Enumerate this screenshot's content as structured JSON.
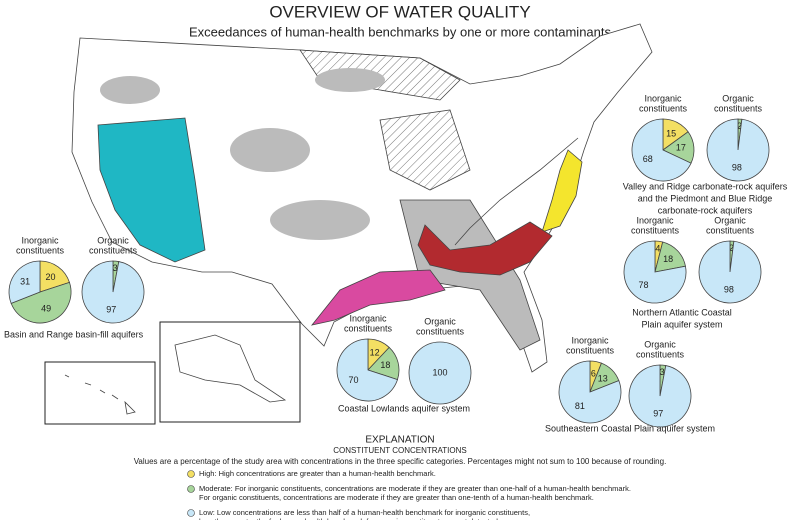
{
  "title": "OVERVIEW OF WATER QUALITY",
  "subtitle": "Exceedances of human-health benchmarks by one or more contaminants",
  "colors": {
    "high": "#f3df63",
    "moderate": "#a7d59b",
    "low": "#c8e7f8"
  },
  "regions": [
    {
      "name": [
        "Valley and Ridge carbonate-rock aquifers",
        "and the Piedmont and Blue Ridge",
        "carbonate-rock aquifers"
      ],
      "inorganic": {
        "label": [
          "Inorganic",
          "constituents"
        ],
        "values": [
          15,
          17,
          68
        ]
      },
      "organic": {
        "label": [
          "Organic",
          "constituents"
        ],
        "values": [
          null,
          2,
          98
        ]
      }
    },
    {
      "name": [
        "Northern Atlantic Coastal",
        "Plain aquifer system"
      ],
      "inorganic": {
        "label": [
          "Inorganic",
          "constituents"
        ],
        "values": [
          4,
          18,
          78
        ]
      },
      "organic": {
        "label": [
          "Organic",
          "constituents"
        ],
        "values": [
          null,
          2,
          98
        ]
      }
    },
    {
      "name": [
        "Basin and Range basin-fill aquifers"
      ],
      "inorganic": {
        "label": [
          "Inorganic",
          "constituents"
        ],
        "values": [
          20,
          49,
          31
        ]
      },
      "organic": {
        "label": [
          "Organic",
          "constituents"
        ],
        "values": [
          null,
          3,
          97
        ]
      }
    },
    {
      "name": [
        "Coastal Lowlands aquifer system"
      ],
      "inorganic": {
        "label": [
          "Inorganic",
          "constituents"
        ],
        "values": [
          12,
          18,
          70
        ]
      },
      "organic": {
        "label": [
          "Organic",
          "constituents"
        ],
        "values": [
          null,
          null,
          100
        ]
      }
    },
    {
      "name": [
        "Southeastern Coastal Plain aquifer system"
      ],
      "inorganic": {
        "label": [
          "Inorganic",
          "constituents"
        ],
        "values": [
          6,
          13,
          81
        ]
      },
      "organic": {
        "label": [
          "Organic",
          "constituents"
        ],
        "values": [
          null,
          3,
          97
        ]
      }
    }
  ],
  "explanation": {
    "title": "EXPLANATION",
    "subtitle": "CONSTITUENT CONCENTRATIONS",
    "note": "Values are a percentage of the study area with  concentrations in the three specific categories. Percentages might not sum to 100 because of rounding.",
    "items": [
      {
        "key": "high",
        "lines": [
          "High: High concentrations are greater than a human-health benchmark."
        ]
      },
      {
        "key": "moderate",
        "lines": [
          "Moderate: For inorganic constituents, concentrations are moderate if they are greater than one-half of a human-health benchmark.",
          "For organic constituents, concentrations are moderate if they are greater than one-tenth of a human-health benchmark."
        ]
      },
      {
        "key": "low",
        "lines": [
          "Low: Low concentrations are less than half of a human-health benchmark for inorganic constituents,",
          "less than one-tenth of a human health benchmark for organic constituents, or not detected."
        ]
      }
    ]
  }
}
